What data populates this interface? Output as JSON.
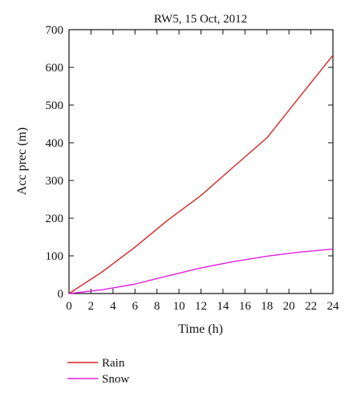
{
  "chart_data": {
    "type": "line",
    "title": "RW5, 15 Oct, 2012",
    "xlabel": "Time (h)",
    "ylabel": "Acc prec (m)",
    "xlim": [
      0,
      24
    ],
    "ylim": [
      0,
      700
    ],
    "xticks": [
      0,
      2,
      4,
      6,
      8,
      10,
      12,
      14,
      16,
      18,
      20,
      22,
      24
    ],
    "yticks": [
      0,
      100,
      200,
      300,
      400,
      500,
      600,
      700
    ],
    "grid": false,
    "legend_position": "bottom-left",
    "series": [
      {
        "name": "Rain",
        "color": "#d62728",
        "x": [
          0,
          3,
          6,
          9,
          12,
          15,
          18,
          21,
          24
        ],
        "y": [
          0,
          57,
          123,
          195,
          260,
          337,
          413,
          523,
          632
        ]
      },
      {
        "name": "Snow",
        "color": "#e020e0",
        "x": [
          0,
          3,
          6,
          9,
          12,
          15,
          18,
          21,
          24
        ],
        "y": [
          0,
          10,
          25,
          47,
          68,
          85,
          99,
          110,
          118
        ]
      }
    ]
  }
}
